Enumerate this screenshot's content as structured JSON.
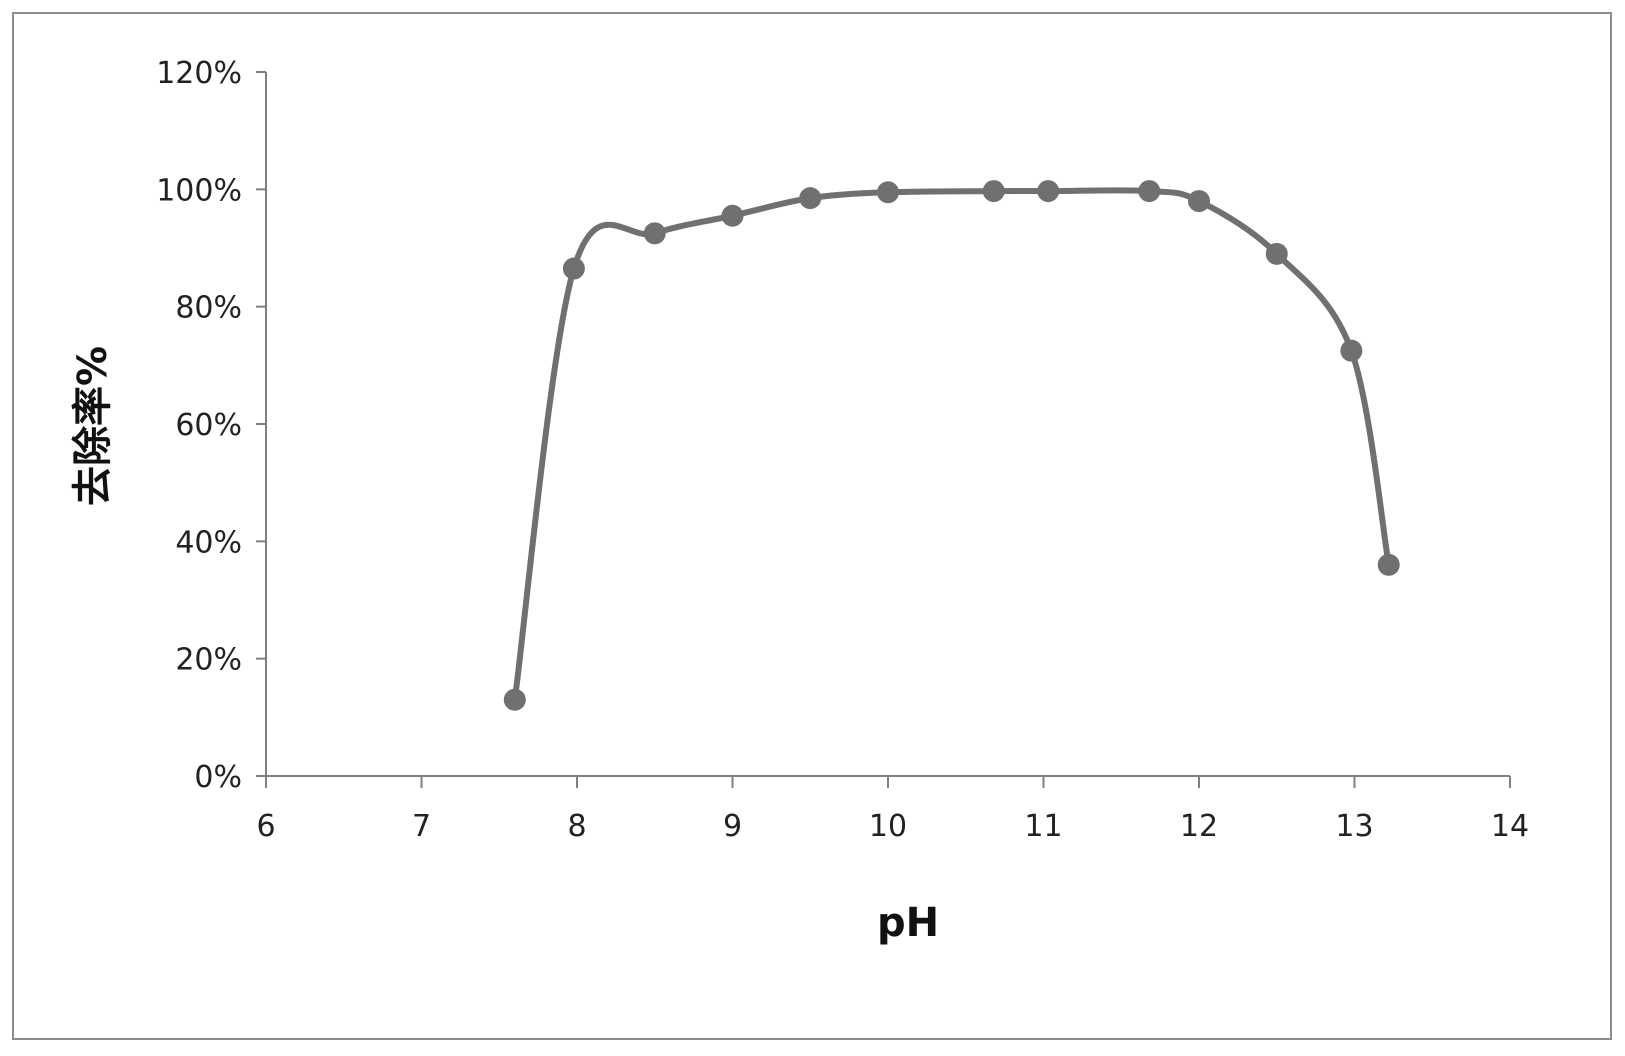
{
  "chart_data": {
    "type": "line",
    "xlabel": "pH",
    "ylabel": "去除率%",
    "xlim": [
      6,
      14
    ],
    "ylim": [
      0,
      1.2
    ],
    "x_ticks": [
      6,
      7,
      8,
      9,
      10,
      11,
      12,
      13,
      14
    ],
    "y_ticks": [
      0,
      0.2,
      0.4,
      0.6,
      0.8,
      1.0,
      1.2
    ],
    "y_tick_labels": [
      "0%",
      "20%",
      "40%",
      "60%",
      "80%",
      "100%",
      "120%"
    ],
    "x_tick_labels": [
      "6",
      "7",
      "8",
      "9",
      "10",
      "11",
      "12",
      "13",
      "14"
    ],
    "grid": false,
    "legend": "none",
    "smooth": true,
    "series_color": "#707070",
    "series": [
      {
        "x": [
          7.6,
          7.98,
          8.5,
          9.0,
          9.5,
          10.0,
          10.68,
          11.03,
          11.68,
          12.0,
          12.5,
          12.98,
          13.22
        ],
        "y": [
          0.13,
          0.865,
          0.925,
          0.955,
          0.985,
          0.995,
          0.997,
          0.997,
          0.997,
          0.98,
          0.89,
          0.725,
          0.36
        ]
      }
    ]
  }
}
